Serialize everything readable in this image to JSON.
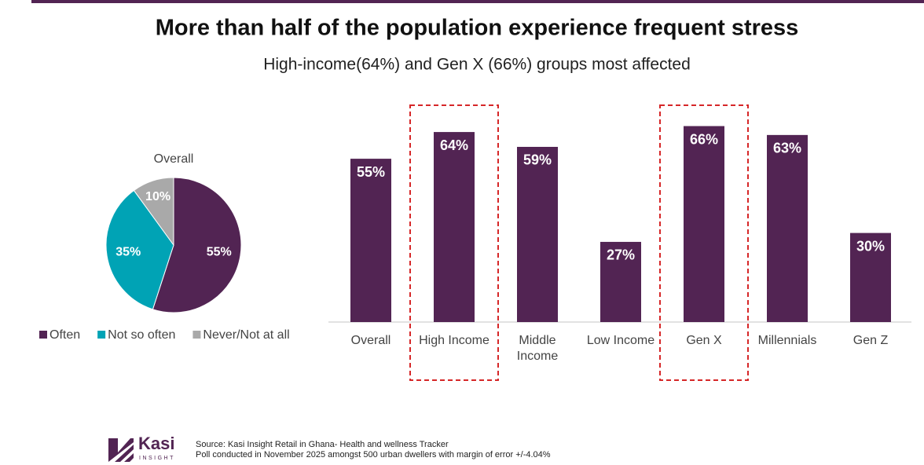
{
  "header": {
    "title": "More than half of the population experience frequent stress",
    "subtitle": "High-income(64%) and Gen X (66%) groups most affected"
  },
  "chart_data": [
    {
      "type": "pie",
      "title": "Overall",
      "categories": [
        "Often",
        "Not so often",
        "Never/Not at all"
      ],
      "values": [
        55,
        35,
        10
      ],
      "value_labels": [
        "55%",
        "35%",
        "10%"
      ],
      "colors": [
        "#522453",
        "#00a3b5",
        "#a9a9a9"
      ],
      "legend": "bottom"
    },
    {
      "type": "bar",
      "categories": [
        "Overall",
        "High Income",
        "Middle Income",
        "Low Income",
        "Gen X",
        "Millennials",
        "Gen Z"
      ],
      "values": [
        55,
        64,
        59,
        27,
        66,
        63,
        30
      ],
      "value_labels": [
        "55%",
        "64%",
        "59%",
        "27%",
        "66%",
        "63%",
        "30%"
      ],
      "color": "#522453",
      "highlighted": [
        1,
        4
      ],
      "highlight_color": "#d62728"
    }
  ],
  "footer": {
    "logo_name": "Kasi",
    "logo_tagline": "INSIGHT",
    "source": "Source: Kasi Insight Retail in Ghana- Health and wellness Tracker",
    "note": "Poll conducted in November 2025 amongst 500 urban dwellers with margin of error +/-4.04%"
  }
}
